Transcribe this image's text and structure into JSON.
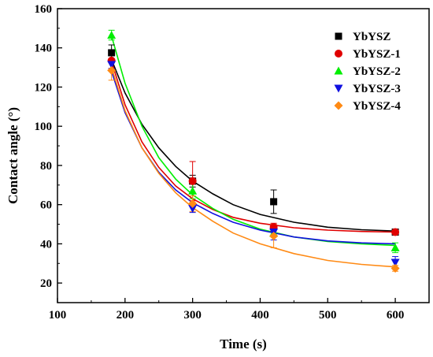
{
  "chart_data": {
    "type": "scatter",
    "title": "",
    "xlabel": "Time (s)",
    "ylabel": "Contact angle (°)",
    "xlim": [
      100,
      650
    ],
    "ylim": [
      10,
      160
    ],
    "xticks": [
      100,
      200,
      300,
      400,
      500,
      600
    ],
    "yticks": [
      20,
      40,
      60,
      80,
      100,
      120,
      140,
      160
    ],
    "grid": false,
    "legend_position": "top-right",
    "series": [
      {
        "name": "YbYSZ",
        "marker": "square",
        "color": "#000000",
        "x": [
          180,
          300,
          420,
          600
        ],
        "y": [
          137.5,
          72,
          61.5,
          46
        ],
        "error": [
          4,
          3,
          6,
          1
        ],
        "fit": [
          [
            180,
            134
          ],
          [
            200,
            117
          ],
          [
            225,
            101
          ],
          [
            250,
            89
          ],
          [
            275,
            79.5
          ],
          [
            300,
            72
          ],
          [
            330,
            65.5
          ],
          [
            360,
            60
          ],
          [
            400,
            55
          ],
          [
            450,
            51
          ],
          [
            500,
            48.5
          ],
          [
            550,
            47.2
          ],
          [
            600,
            46.5
          ]
        ]
      },
      {
        "name": "YbYSZ-1",
        "marker": "circle",
        "color": "#e00000",
        "x": [
          180,
          300,
          420,
          600
        ],
        "y": [
          133.5,
          72,
          48.5,
          46
        ],
        "error": [
          4,
          10,
          2,
          1
        ],
        "fit": [
          [
            180,
            133
          ],
          [
            200,
            111
          ],
          [
            225,
            92
          ],
          [
            250,
            79
          ],
          [
            275,
            69.5
          ],
          [
            300,
            63
          ],
          [
            330,
            57.5
          ],
          [
            360,
            53.5
          ],
          [
            400,
            50.5
          ],
          [
            450,
            48.2
          ],
          [
            500,
            47
          ],
          [
            550,
            46.3
          ],
          [
            600,
            46
          ]
        ]
      },
      {
        "name": "YbYSZ-2",
        "marker": "triangle-up",
        "color": "#00ee00",
        "x": [
          180,
          300,
          420,
          600
        ],
        "y": [
          146.5,
          67,
          45.5,
          38
        ],
        "error": [
          2.5,
          4,
          2,
          2.5
        ],
        "fit": [
          [
            180,
            146
          ],
          [
            200,
            122
          ],
          [
            225,
            100
          ],
          [
            250,
            84
          ],
          [
            275,
            73
          ],
          [
            300,
            65
          ],
          [
            330,
            58
          ],
          [
            360,
            52.5
          ],
          [
            400,
            47.5
          ],
          [
            450,
            43.5
          ],
          [
            500,
            41.2
          ],
          [
            550,
            40
          ],
          [
            600,
            39.2
          ]
        ]
      },
      {
        "name": "YbYSZ-3",
        "marker": "triangle-down",
        "color": "#1010e0",
        "x": [
          180,
          300,
          420,
          600
        ],
        "y": [
          131.5,
          58,
          46,
          30.5
        ],
        "error": [
          2,
          2,
          4,
          3
        ],
        "fit": [
          [
            180,
            128
          ],
          [
            200,
            107
          ],
          [
            225,
            89
          ],
          [
            250,
            76.5
          ],
          [
            275,
            67.5
          ],
          [
            300,
            61
          ],
          [
            330,
            55.5
          ],
          [
            360,
            51
          ],
          [
            400,
            47
          ],
          [
            450,
            43.5
          ],
          [
            500,
            41.5
          ],
          [
            550,
            40.5
          ],
          [
            600,
            40
          ]
        ]
      },
      {
        "name": "YbYSZ-4",
        "marker": "diamond",
        "color": "#ff8a14",
        "x": [
          180,
          300,
          420,
          600
        ],
        "y": [
          128.5,
          60.5,
          44,
          27.5
        ],
        "error": [
          5,
          4,
          6,
          1.5
        ],
        "fit": [
          [
            180,
            130
          ],
          [
            200,
            108
          ],
          [
            225,
            89
          ],
          [
            250,
            76
          ],
          [
            275,
            66
          ],
          [
            300,
            58.5
          ],
          [
            330,
            51.5
          ],
          [
            360,
            45.5
          ],
          [
            400,
            40
          ],
          [
            450,
            35
          ],
          [
            500,
            31.5
          ],
          [
            550,
            29.5
          ],
          [
            600,
            28.2
          ]
        ]
      }
    ]
  }
}
